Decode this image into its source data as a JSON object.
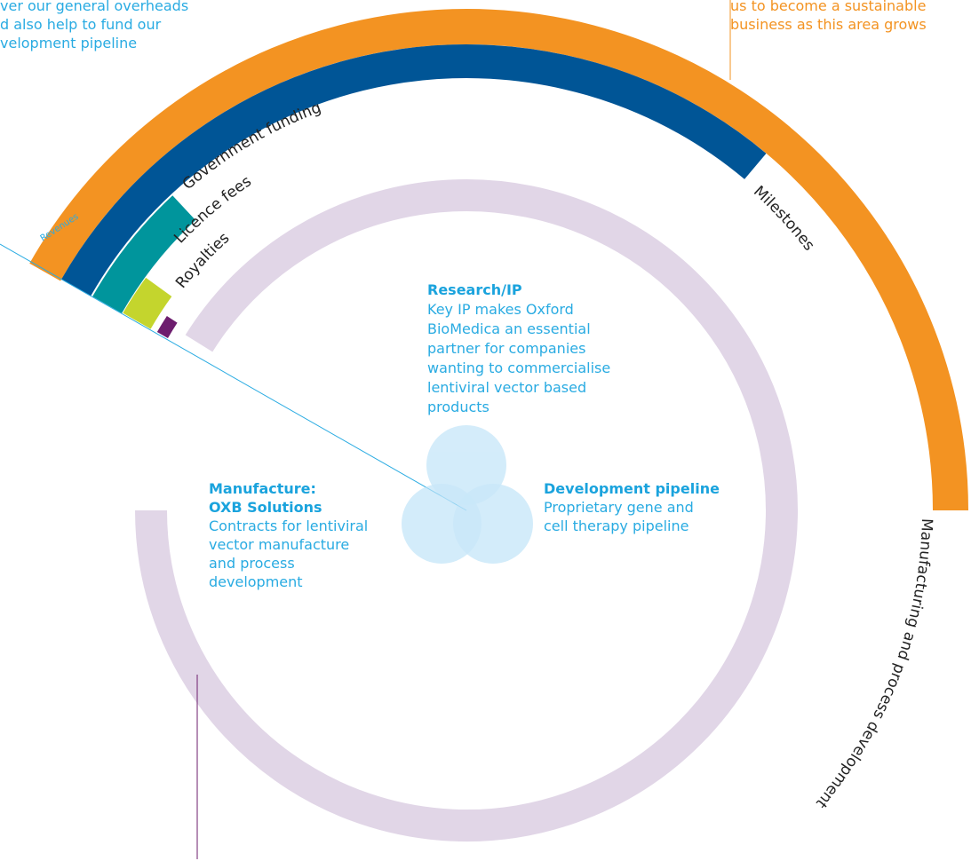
{
  "top_left_note": {
    "lines": [
      "ver our general overheads",
      "d also help to fund our",
      "velopment pipeline"
    ]
  },
  "top_right_note": {
    "lines": [
      "us to become a sustainable",
      "business as this area grows"
    ]
  },
  "arc_labels": {
    "revenues": "Revenues",
    "government_funding": "Government funding",
    "licence_fees": "Licence fees",
    "royalties": "Royalties",
    "milestones": "Milestones",
    "manufacturing": "Manufacturing and process development"
  },
  "research": {
    "title": "Research/IP",
    "lines": [
      "Key IP makes Oxford",
      "BioMedica an essential",
      "partner for companies",
      "wanting to commercialise",
      "lentiviral vector based",
      "products"
    ]
  },
  "manufacture": {
    "title_lines": [
      "Manufacture:",
      "OXB Solutions"
    ],
    "lines": [
      "Contracts for lentiviral",
      "vector manufacture",
      "and process",
      "development"
    ]
  },
  "development": {
    "title": "Development pipeline",
    "lines": [
      "Proprietary gene and",
      "cell therapy pipeline"
    ]
  }
}
